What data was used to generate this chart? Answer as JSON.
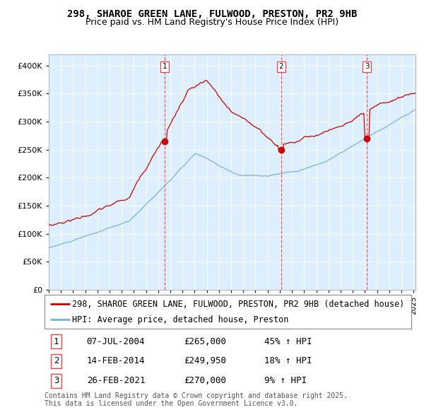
{
  "title": "298, SHAROE GREEN LANE, FULWOOD, PRESTON, PR2 9HB",
  "subtitle": "Price paid vs. HM Land Registry's House Price Index (HPI)",
  "sale1_date": "07-JUL-2004",
  "sale1_price": 265000,
  "sale1_label": "45% ↑ HPI",
  "sale2_date": "14-FEB-2014",
  "sale2_price": 249950,
  "sale2_label": "18% ↑ HPI",
  "sale3_date": "26-FEB-2021",
  "sale3_price": 270000,
  "sale3_label": "9% ↑ HPI",
  "legend1": "298, SHAROE GREEN LANE, FULWOOD, PRESTON, PR2 9HB (detached house)",
  "legend2": "HPI: Average price, detached house, Preston",
  "footer": "Contains HM Land Registry data © Crown copyright and database right 2025.\nThis data is licensed under the Open Government Licence v3.0.",
  "red_color": "#cc0000",
  "blue_color": "#7ab3d4",
  "bg_color": "#ddeeff",
  "fig_bg": "#ffffff",
  "grid_color": "#ffffff",
  "vline_color": "#ee4444",
  "marker_color": "#cc0000",
  "ylim_min": 0,
  "ylim_max": 420000,
  "title_fontsize": 10,
  "subtitle_fontsize": 9,
  "axis_fontsize": 8,
  "legend_fontsize": 8.5,
  "table_fontsize": 9,
  "footer_fontsize": 7
}
